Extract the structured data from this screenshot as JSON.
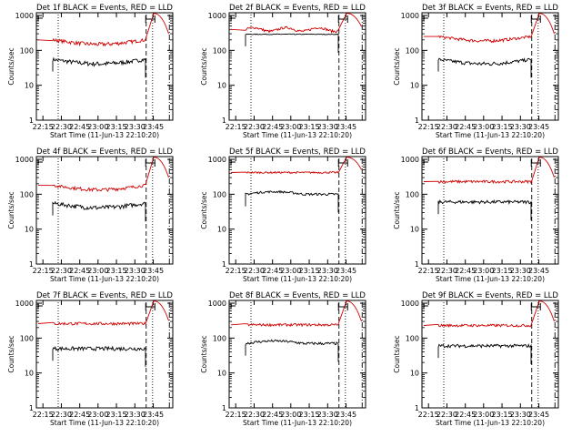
{
  "colors": {
    "events": "#000000",
    "lld": "#d00000",
    "axis": "#000000",
    "background": "#ffffff"
  },
  "panel_common": {
    "ylabel": "Counts/sec",
    "xlabel": "Start Time (11-Jun-13 22:10:20)",
    "x_ticks": [
      "22:15",
      "22:30",
      "22:45",
      "23:00",
      "23:15",
      "23:30",
      "23:45"
    ],
    "y_ticks": [
      "1",
      "10",
      "100",
      "1000"
    ]
  },
  "chart_data": [
    {
      "type": "line",
      "title": "Det 1f BLACK = Events, RED = LLD",
      "ylog": true,
      "ylim": [
        1,
        1200
      ],
      "series": [
        {
          "name": "Events",
          "level": 55,
          "amp": 8,
          "shape": "dip"
        },
        {
          "name": "LLD",
          "level": 200,
          "amp": 25,
          "shape": "dip"
        }
      ]
    },
    {
      "type": "line",
      "title": "Det 2f BLACK = Events, RED = LLD",
      "ylog": true,
      "ylim": [
        1,
        1200
      ],
      "series": [
        {
          "name": "Events",
          "level": 290,
          "amp": 10,
          "shape": "flat"
        },
        {
          "name": "LLD",
          "level": 400,
          "amp": 40,
          "shape": "wave"
        }
      ]
    },
    {
      "type": "line",
      "title": "Det 3f BLACK = Events, RED = LLD",
      "ylog": true,
      "ylim": [
        1,
        1200
      ],
      "series": [
        {
          "name": "Events",
          "level": 55,
          "amp": 7,
          "shape": "dip"
        },
        {
          "name": "LLD",
          "level": 250,
          "amp": 25,
          "shape": "dip"
        }
      ]
    },
    {
      "type": "line",
      "title": "Det 4f BLACK = Events, RED = LLD",
      "ylog": true,
      "ylim": [
        1,
        1200
      ],
      "series": [
        {
          "name": "Events",
          "level": 55,
          "amp": 8,
          "shape": "dip"
        },
        {
          "name": "LLD",
          "level": 180,
          "amp": 20,
          "shape": "dip"
        }
      ]
    },
    {
      "type": "line",
      "title": "Det 5f BLACK = Events, RED = LLD",
      "ylog": true,
      "ylim": [
        1,
        1200
      ],
      "series": [
        {
          "name": "Events",
          "level": 100,
          "amp": 10,
          "shape": "hump"
        },
        {
          "name": "LLD",
          "level": 420,
          "amp": 30,
          "shape": "flat"
        }
      ]
    },
    {
      "type": "line",
      "title": "Det 6f BLACK = Events, RED = LLD",
      "ylog": true,
      "ylim": [
        1,
        1200
      ],
      "series": [
        {
          "name": "Events",
          "level": 60,
          "amp": 8,
          "shape": "flat"
        },
        {
          "name": "LLD",
          "level": 230,
          "amp": 25,
          "shape": "flat"
        }
      ]
    },
    {
      "type": "line",
      "title": "Det 7f BLACK = Events, RED = LLD",
      "ylog": true,
      "ylim": [
        1,
        1200
      ],
      "series": [
        {
          "name": "Events",
          "level": 50,
          "amp": 8,
          "shape": "flat"
        },
        {
          "name": "LLD",
          "level": 260,
          "amp": 30,
          "shape": "flat"
        }
      ]
    },
    {
      "type": "line",
      "title": "Det 8f BLACK = Events, RED = LLD",
      "ylog": true,
      "ylim": [
        1,
        1200
      ],
      "series": [
        {
          "name": "Events",
          "level": 70,
          "amp": 8,
          "shape": "hump"
        },
        {
          "name": "LLD",
          "level": 240,
          "amp": 25,
          "shape": "flat"
        }
      ]
    },
    {
      "type": "line",
      "title": "Det 9f BLACK = Events, RED = LLD",
      "ylog": true,
      "ylim": [
        1,
        1200
      ],
      "series": [
        {
          "name": "Events",
          "level": 60,
          "amp": 8,
          "shape": "flat"
        },
        {
          "name": "LLD",
          "level": 230,
          "amp": 25,
          "shape": "flat"
        }
      ]
    }
  ]
}
